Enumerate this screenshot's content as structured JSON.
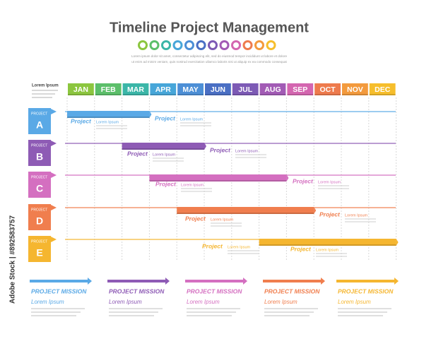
{
  "header": {
    "title": "Timeline Project Management",
    "subtitle": [
      "Lorem ipsum dolor sit amet, consectetur adipiscing elit, sed do eiusmod tempor incididunt ut labore et dolore",
      "ut enim ad minim veniam, quis nostrud exercitation ullamco laboris nisi ut aliquip ex ea commodo consequat"
    ]
  },
  "timeline": {
    "side_label": "Lorem Ipsum",
    "months": [
      "JAN",
      "FEB",
      "MAR",
      "APR",
      "MAY",
      "JUN",
      "JUL",
      "AUG",
      "SEP",
      "OCT",
      "NOV",
      "DEC"
    ],
    "rows": [
      {
        "tag": "PROJECT",
        "letter": "A",
        "labels": [
          {
            "title": "Project",
            "text": "Lorem Ipsum"
          },
          {
            "title": "Project",
            "text": "Lorem Ipsum"
          }
        ]
      },
      {
        "tag": "PROJECT",
        "letter": "B",
        "labels": [
          {
            "title": "Project",
            "text": "Lorem Ipsum"
          },
          {
            "title": "Project",
            "text": "Lorem Ipsum"
          }
        ]
      },
      {
        "tag": "PROJECT",
        "letter": "C",
        "labels": [
          {
            "title": "Project",
            "text": "Lorem Ipsum"
          },
          {
            "title": "Project",
            "text": "Lorem Ipsum"
          }
        ]
      },
      {
        "tag": "PROJECT",
        "letter": "D",
        "labels": [
          {
            "title": "Project",
            "text": "Lorem Ipsum"
          },
          {
            "title": "Project",
            "text": "Lorem Ipsum"
          }
        ]
      },
      {
        "tag": "PROJECT",
        "letter": "E",
        "labels": [
          {
            "title": "Project",
            "text": "Lorem Ipsum"
          },
          {
            "title": "Project",
            "text": "Lorem Ipsum"
          }
        ]
      }
    ]
  },
  "missions": [
    {
      "title": "PROJECT MISSION",
      "text": "Lorem Ipsum"
    },
    {
      "title": "PROJECT MISSION",
      "text": "Lorem Ipsum"
    },
    {
      "title": "PROJECT MISSION",
      "text": "Lorem Ipsum"
    },
    {
      "title": "PROJECT MISSION",
      "text": "Lorem Ipsum"
    },
    {
      "title": "PROJECT MISSION",
      "text": "Lorem Ipsum"
    }
  ],
  "watermark": "Adobe Stock | #892583757"
}
